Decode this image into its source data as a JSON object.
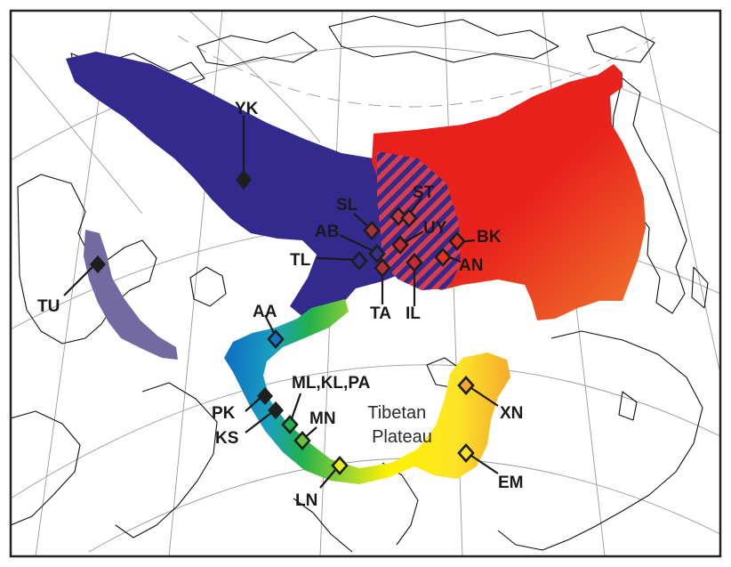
{
  "map": {
    "geography_label": [
      "Tibetan",
      "Plateau"
    ],
    "colors": {
      "frame": "#222222",
      "graticule": "#9a9a9a",
      "coastline": "#111111",
      "clade_northeast": "#e8201c",
      "clade_northwest": "#322a8c",
      "clade_turkey": "#726aa0",
      "clade_south_start": "#0f74c2",
      "clade_south_mid": "#22b14c",
      "clade_south_end": "#fff200",
      "clade_south_tip": "#f29a2e",
      "hatch": "#d63c4a",
      "marker_outline": "#1e1e1e"
    },
    "sites": [
      {
        "id": "YK",
        "marker": "filled"
      },
      {
        "id": "TU",
        "marker": "filled"
      },
      {
        "id": "SL",
        "marker": "hatched"
      },
      {
        "id": "ST",
        "marker": "open"
      },
      {
        "id": "UY",
        "marker": "open"
      },
      {
        "id": "BK",
        "marker": "open"
      },
      {
        "id": "AB",
        "marker": "open"
      },
      {
        "id": "TL",
        "marker": "open"
      },
      {
        "id": "TA",
        "marker": "hatched"
      },
      {
        "id": "IL",
        "marker": "open"
      },
      {
        "id": "AN",
        "marker": "open"
      },
      {
        "id": "AA",
        "marker": "open"
      },
      {
        "id": "ML,KL,PA",
        "marker": "open"
      },
      {
        "id": "PK",
        "marker": "filled"
      },
      {
        "id": "KS",
        "marker": "filled"
      },
      {
        "id": "MN",
        "marker": "open"
      },
      {
        "id": "LN",
        "marker": "open"
      },
      {
        "id": "XN",
        "marker": "open"
      },
      {
        "id": "EM",
        "marker": "open"
      }
    ]
  }
}
